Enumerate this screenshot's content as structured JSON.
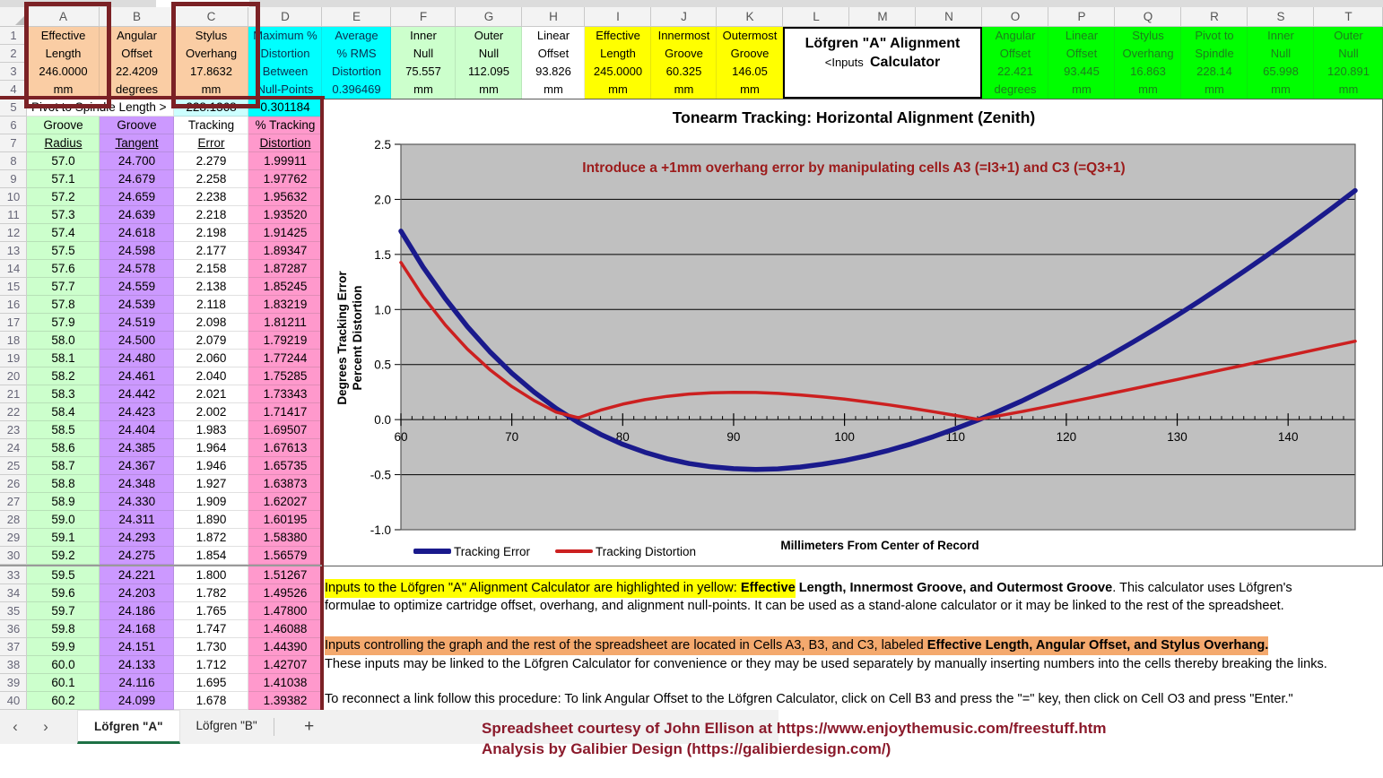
{
  "colors": {
    "peach": "#facda4",
    "maroon": "#7b2125",
    "cyan": "#00ffff",
    "pale_cyan": "#ccffff",
    "lt_green": "#ccffcc",
    "yellow": "#ffff00",
    "bright_green": "#00ff00",
    "green_text": "#1d7d1d",
    "navy_text": "#0b3050",
    "purple": "#cc99ff",
    "pink": "#ff99cc",
    "plot_grey": "#c0c0c0",
    "line_blue": "#1a1a8c",
    "line_red": "#cc2020",
    "annotation_red": "#9c1b1b",
    "footer_red": "#8b1a2b",
    "orange_hl": "#f4a96e",
    "tab_green": "#1e7145",
    "white": "#ffffff"
  },
  "sheet": {
    "columns": [
      "A",
      "B",
      "C",
      "D",
      "E",
      "F",
      "G",
      "H",
      "I",
      "J",
      "K",
      "L",
      "M",
      "N",
      "O",
      "P",
      "Q",
      "R",
      "S",
      "T"
    ],
    "header_blocks": [
      {
        "col": "A",
        "lines": [
          "Effective",
          "Length",
          "246.0000",
          "mm"
        ],
        "bg": "peach",
        "boxed": true
      },
      {
        "col": "B",
        "lines": [
          "Angular",
          "Offset",
          "22.4209",
          "degrees"
        ],
        "bg": "peach"
      },
      {
        "col": "C",
        "lines": [
          "Stylus",
          "Overhang",
          "17.8632",
          "mm"
        ],
        "bg": "peach",
        "boxed": true
      },
      {
        "col": "D",
        "lines": [
          "Maximum %",
          "Distortion",
          "Between",
          "Null-Points"
        ],
        "bg": "cyan",
        "fg": "navy_text"
      },
      {
        "col": "E",
        "lines": [
          "Average",
          "% RMS",
          "Distortion",
          "0.396469"
        ],
        "bg": "cyan",
        "fg": "navy_text"
      },
      {
        "col": "F",
        "lines": [
          "Inner",
          "Null",
          "75.557",
          "mm"
        ],
        "bg": "lt_green"
      },
      {
        "col": "G",
        "lines": [
          "Outer",
          "Null",
          "112.095",
          "mm"
        ],
        "bg": "lt_green"
      },
      {
        "col": "H",
        "lines": [
          "Linear",
          "Offset",
          "93.826",
          "mm"
        ],
        "bg": "white"
      },
      {
        "col": "I",
        "lines": [
          "Effective",
          "Length",
          "245.0000",
          "mm"
        ],
        "bg": "yellow"
      },
      {
        "col": "J",
        "lines": [
          "Innermost",
          "Groove",
          "60.325",
          "mm"
        ],
        "bg": "yellow"
      },
      {
        "col": "K",
        "lines": [
          "Outermost",
          "Groove",
          "146.05",
          "mm"
        ],
        "bg": "yellow"
      },
      {
        "col": "O",
        "lines": [
          "Angular",
          "Offset",
          "22.421",
          "degrees"
        ],
        "bg": "bright_green",
        "fg": "green_text"
      },
      {
        "col": "P",
        "lines": [
          "Linear",
          "Offset",
          "93.445",
          "mm"
        ],
        "bg": "bright_green",
        "fg": "green_text"
      },
      {
        "col": "Q",
        "lines": [
          "Stylus",
          "Overhang",
          "16.863",
          "mm"
        ],
        "bg": "bright_green",
        "fg": "green_text"
      },
      {
        "col": "R",
        "lines": [
          "Pivot to",
          "Spindle",
          "228.14",
          "mm"
        ],
        "bg": "bright_green",
        "fg": "green_text"
      },
      {
        "col": "S",
        "lines": [
          "Inner",
          "Null",
          "65.998",
          "mm"
        ],
        "bg": "bright_green",
        "fg": "green_text"
      },
      {
        "col": "T",
        "lines": [
          "Outer",
          "Null",
          "120.891",
          "mm"
        ],
        "bg": "bright_green",
        "fg": "green_text"
      }
    ],
    "calc_box": {
      "line1": "Löfgren \"A\" Alignment",
      "inputs": "<Inputs",
      "line2": "Calculator"
    },
    "row5": {
      "label": "Pivot to Spindle Length >",
      "c": "228.1368",
      "d": "0.301184"
    },
    "table": {
      "headers": [
        [
          "Groove",
          "Radius"
        ],
        [
          "Groove",
          "Tangent"
        ],
        [
          "Tracking",
          "Error"
        ],
        [
          "% Tracking",
          "Distortion"
        ]
      ],
      "rows": [
        {
          "n": "8",
          "v": [
            "57.0",
            "24.700",
            "2.279",
            "1.99911"
          ]
        },
        {
          "n": "9",
          "v": [
            "57.1",
            "24.679",
            "2.258",
            "1.97762"
          ]
        },
        {
          "n": "10",
          "v": [
            "57.2",
            "24.659",
            "2.238",
            "1.95632"
          ]
        },
        {
          "n": "11",
          "v": [
            "57.3",
            "24.639",
            "2.218",
            "1.93520"
          ]
        },
        {
          "n": "12",
          "v": [
            "57.4",
            "24.618",
            "2.198",
            "1.91425"
          ]
        },
        {
          "n": "13",
          "v": [
            "57.5",
            "24.598",
            "2.177",
            "1.89347"
          ]
        },
        {
          "n": "14",
          "v": [
            "57.6",
            "24.578",
            "2.158",
            "1.87287"
          ]
        },
        {
          "n": "15",
          "v": [
            "57.7",
            "24.559",
            "2.138",
            "1.85245"
          ]
        },
        {
          "n": "16",
          "v": [
            "57.8",
            "24.539",
            "2.118",
            "1.83219"
          ]
        },
        {
          "n": "17",
          "v": [
            "57.9",
            "24.519",
            "2.098",
            "1.81211"
          ]
        },
        {
          "n": "18",
          "v": [
            "58.0",
            "24.500",
            "2.079",
            "1.79219"
          ]
        },
        {
          "n": "19",
          "v": [
            "58.1",
            "24.480",
            "2.060",
            "1.77244"
          ]
        },
        {
          "n": "20",
          "v": [
            "58.2",
            "24.461",
            "2.040",
            "1.75285"
          ]
        },
        {
          "n": "21",
          "v": [
            "58.3",
            "24.442",
            "2.021",
            "1.73343"
          ]
        },
        {
          "n": "22",
          "v": [
            "58.4",
            "24.423",
            "2.002",
            "1.71417"
          ]
        },
        {
          "n": "23",
          "v": [
            "58.5",
            "24.404",
            "1.983",
            "1.69507"
          ]
        },
        {
          "n": "24",
          "v": [
            "58.6",
            "24.385",
            "1.964",
            "1.67613"
          ]
        },
        {
          "n": "25",
          "v": [
            "58.7",
            "24.367",
            "1.946",
            "1.65735"
          ]
        },
        {
          "n": "26",
          "v": [
            "58.8",
            "24.348",
            "1.927",
            "1.63873"
          ]
        },
        {
          "n": "27",
          "v": [
            "58.9",
            "24.330",
            "1.909",
            "1.62027"
          ]
        },
        {
          "n": "28",
          "v": [
            "59.0",
            "24.311",
            "1.890",
            "1.60195"
          ]
        },
        {
          "n": "29",
          "v": [
            "59.1",
            "24.293",
            "1.872",
            "1.58380"
          ]
        },
        {
          "n": "30",
          "v": [
            "59.2",
            "24.275",
            "1.854",
            "1.56579"
          ]
        },
        {
          "n": "33",
          "v": [
            "59.5",
            "24.221",
            "1.800",
            "1.51267"
          ],
          "gap": true
        },
        {
          "n": "34",
          "v": [
            "59.6",
            "24.203",
            "1.782",
            "1.49526"
          ]
        },
        {
          "n": "35",
          "v": [
            "59.7",
            "24.186",
            "1.765",
            "1.47800"
          ]
        },
        {
          "n": "36",
          "v": [
            "59.8",
            "24.168",
            "1.747",
            "1.46088"
          ]
        },
        {
          "n": "37",
          "v": [
            "59.9",
            "24.151",
            "1.730",
            "1.44390"
          ]
        },
        {
          "n": "38",
          "v": [
            "60.0",
            "24.133",
            "1.712",
            "1.42707"
          ]
        },
        {
          "n": "39",
          "v": [
            "60.1",
            "24.116",
            "1.695",
            "1.41038"
          ]
        },
        {
          "n": "40",
          "v": [
            "60.2",
            "24.099",
            "1.678",
            "1.39382"
          ]
        }
      ]
    }
  },
  "chart_data": {
    "type": "line",
    "title": "Tonearm Tracking:  Horizontal Alignment (Zenith)",
    "annotation": "Introduce a +1mm overhang error by manipulating cells A3 (=I3+1) and C3 (=Q3+1)",
    "xlabel": "Millimeters From Center of Record",
    "ylabel_line1": "Degrees Tracking Error",
    "ylabel_line2": "Percent Distortion",
    "xlim": [
      60,
      146.05
    ],
    "ylim": [
      -1.0,
      2.5
    ],
    "xticks": [
      60,
      70,
      80,
      90,
      100,
      110,
      120,
      130,
      140
    ],
    "yticks": [
      "2.5",
      "2.0",
      "1.5",
      "1.0",
      "0.5",
      "0.0",
      "-0.5",
      "-1.0"
    ],
    "grid": true,
    "legend_position": "bottom-left",
    "x": [
      60,
      62,
      64,
      66,
      68,
      70,
      72,
      74,
      76,
      78,
      80,
      82,
      84,
      86,
      88,
      90,
      92,
      94,
      96,
      98,
      100,
      102,
      104,
      106,
      108,
      110,
      112,
      114,
      116,
      118,
      120,
      122,
      124,
      126,
      128,
      130,
      132,
      134,
      136,
      138,
      140,
      142,
      144,
      146.05
    ],
    "series": [
      {
        "name": "Tracking Error",
        "color": "line_blue",
        "values": [
          1.712,
          1.386,
          1.099,
          0.844,
          0.619,
          0.422,
          0.251,
          0.101,
          -0.026,
          -0.134,
          -0.224,
          -0.297,
          -0.355,
          -0.399,
          -0.429,
          -0.446,
          -0.452,
          -0.447,
          -0.431,
          -0.405,
          -0.372,
          -0.329,
          -0.279,
          -0.221,
          -0.155,
          -0.083,
          -0.005,
          0.081,
          0.17,
          0.268,
          0.369,
          0.475,
          0.587,
          0.703,
          0.823,
          0.947,
          1.076,
          1.209,
          1.345,
          1.485,
          1.627,
          1.774,
          1.924,
          2.08
        ]
      },
      {
        "name": "Tracking Distortion",
        "color": "line_red",
        "values": [
          1.427,
          1.118,
          0.859,
          0.639,
          0.455,
          0.301,
          0.174,
          0.068,
          0.017,
          0.086,
          0.14,
          0.181,
          0.211,
          0.232,
          0.244,
          0.248,
          0.246,
          0.238,
          0.224,
          0.207,
          0.186,
          0.161,
          0.134,
          0.104,
          0.072,
          0.038,
          0.002,
          0.036,
          0.073,
          0.113,
          0.154,
          0.195,
          0.237,
          0.279,
          0.322,
          0.364,
          0.407,
          0.451,
          0.494,
          0.538,
          0.581,
          0.625,
          0.668,
          0.712
        ]
      }
    ]
  },
  "notes": {
    "p1l1": [
      {
        "t": "Inputs to the Löfgren \"A\" Alignment Calculator are highlighted in yellow:  ",
        "b": 0,
        "h": "yellow"
      },
      {
        "t": "Effective",
        "b": 1,
        "h": "yellow"
      },
      {
        "t": " Length, Innermost Groove, and Outermost Groove",
        "b": 1
      },
      {
        "t": ".  This calculator uses Löfgren's",
        "b": 0
      }
    ],
    "p1l2": [
      {
        "t": "formulae to optimize cartridge offset, overhang, and alignment null-points.  It can be used as a stand-alone calculator or it may be linked to the rest of the spreadsheet.",
        "b": 0
      }
    ],
    "p2l1": [
      {
        "t": "Inputs controlling the graph and the rest of the spreadsheet are located in Cells A3, B3, and C3, labeled ",
        "b": 0,
        "h": "orange"
      },
      {
        "t": "Effective Length, Angular Offset, and Stylus Overhang. ",
        "b": 1,
        "h": "orange"
      }
    ],
    "p2l2": [
      {
        "t": "These inputs may be linked to the Löfgren Calculator for convenience or they may be used separately by manually inserting numbers into the cells thereby breaking the links.",
        "b": 0
      }
    ],
    "p3l1": [
      {
        "t": "To reconnect a link follow this procedure:  To link Angular Offset to the Löfgren Calculator, click on Cell B3 and press the \"=\" key, then click on Cell O3 and press \"Enter.\"",
        "b": 0
      }
    ]
  },
  "tabs": {
    "prev": "‹",
    "next": "›",
    "add": "+",
    "items": [
      {
        "label": "Löfgren \"A\"",
        "active": true
      },
      {
        "label": "Löfgren \"B\"",
        "active": false
      }
    ]
  },
  "footer": {
    "line1": "Spreadsheet courtesy of John Ellison at https://www.enjoythemusic.com/freestuff.htm",
    "line2": "Analysis by Galibier Design (https://galibierdesign.com/)"
  }
}
